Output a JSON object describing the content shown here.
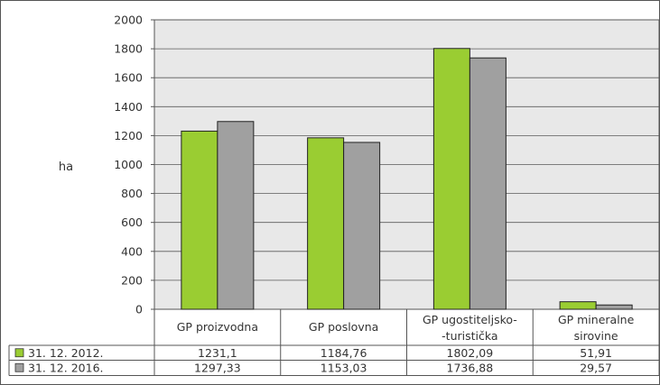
{
  "chart_data": {
    "type": "bar",
    "ylabel": "ha",
    "ylim": [
      0,
      2000
    ],
    "yticks": [
      0,
      200,
      400,
      600,
      800,
      1000,
      1200,
      1400,
      1600,
      1800,
      2000
    ],
    "grid": true,
    "categories": [
      [
        "GP proizvodna"
      ],
      [
        "GP poslovna"
      ],
      [
        "GP ugostiteljsko-",
        "-turistička"
      ],
      [
        "GP mineralne",
        "sirovine"
      ]
    ],
    "series": [
      {
        "name": "31. 12. 2012.",
        "color": "#9ACD32",
        "values": [
          1231.1,
          1184.76,
          1802.09,
          51.91
        ],
        "labels": [
          "1231,1",
          "1184,76",
          "1802,09",
          "51,91"
        ]
      },
      {
        "name": "31. 12. 2016.",
        "color": "#A0A0A0",
        "values": [
          1297.33,
          1153.03,
          1736.88,
          29.57
        ],
        "labels": [
          "1297,33",
          "1153,03",
          "1736,88",
          "29,57"
        ]
      }
    ],
    "plot_background": "#E8E8E8"
  }
}
